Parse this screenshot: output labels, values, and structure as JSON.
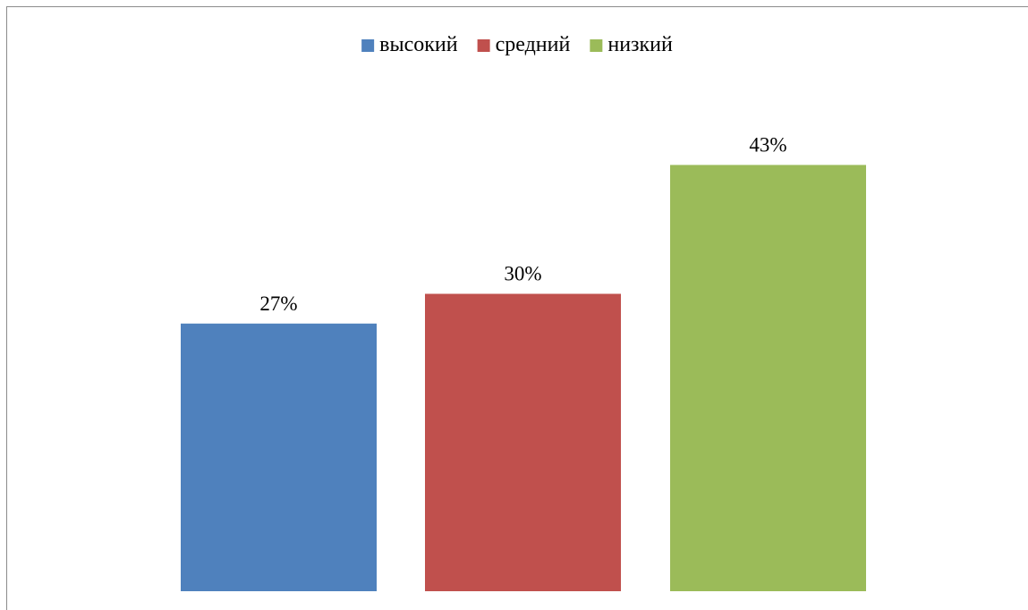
{
  "chart_data": {
    "type": "bar",
    "categories": [
      "высокий",
      "средний",
      "низкий"
    ],
    "values": [
      27,
      30,
      43
    ],
    "value_labels": [
      "27%",
      "30%",
      "43%"
    ],
    "colors": [
      "#4f81bd",
      "#c0504d",
      "#9bbb59"
    ],
    "unit": "%",
    "title": "",
    "xlabel": "",
    "ylabel": "",
    "ylim": [
      0,
      60
    ],
    "grid": false,
    "legend": {
      "placement": "top-center",
      "entries": [
        "высокий",
        "средний",
        "низкий"
      ]
    }
  }
}
